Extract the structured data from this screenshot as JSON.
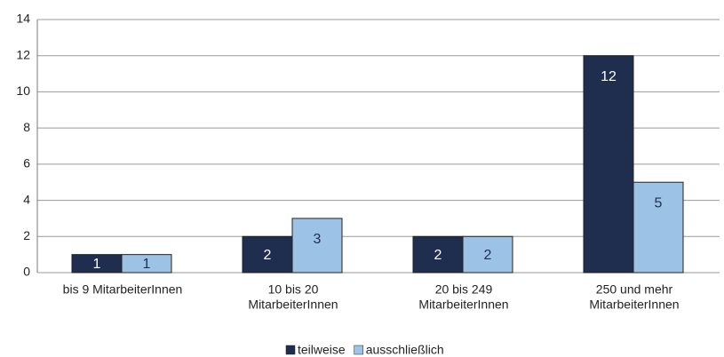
{
  "chart_data": {
    "type": "bar",
    "categories": [
      [
        "bis 9 MitarbeiterInnen"
      ],
      [
        "10 bis 20",
        "MitarbeiterInnen"
      ],
      [
        "20 bis 249",
        "MitarbeiterInnen"
      ],
      [
        "250 und mehr",
        "MitarbeiterInnen"
      ]
    ],
    "series": [
      {
        "name": "teilweise",
        "color": "#1f2d4f",
        "values": [
          1,
          2,
          2,
          12
        ]
      },
      {
        "name": "ausschließlich",
        "color": "#9cc3e6",
        "values": [
          1,
          3,
          2,
          5
        ]
      }
    ],
    "ylim": [
      0,
      14
    ],
    "yticks": [
      0,
      2,
      4,
      6,
      8,
      10,
      12,
      14
    ],
    "grid": true,
    "legend": "bottom"
  }
}
